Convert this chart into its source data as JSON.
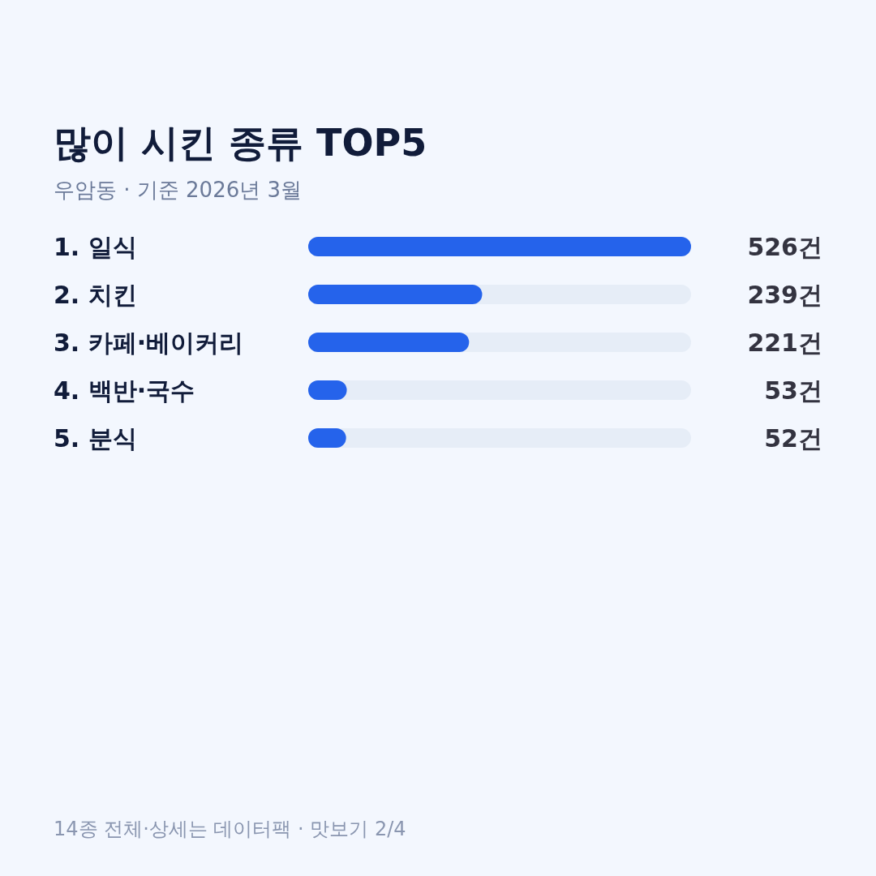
{
  "chart_data": {
    "type": "bar",
    "orientation": "horizontal",
    "title": "많이 시킨 종류 TOP5",
    "subtitle": "우암동 · 기준 2026년 3월",
    "categories": [
      "1. 일식",
      "2. 치킨",
      "3. 카페·베이커리",
      "4. 백반·국수",
      "5. 분식"
    ],
    "values": [
      526,
      239,
      221,
      53,
      52
    ],
    "color": "#2563eb",
    "value_labels": [
      "526건",
      "239건",
      "221건",
      "53건",
      "52건"
    ],
    "annotations": [
      "14종 전체·상세는 데이터팩 · 맛보기 2/4"
    ]
  }
}
